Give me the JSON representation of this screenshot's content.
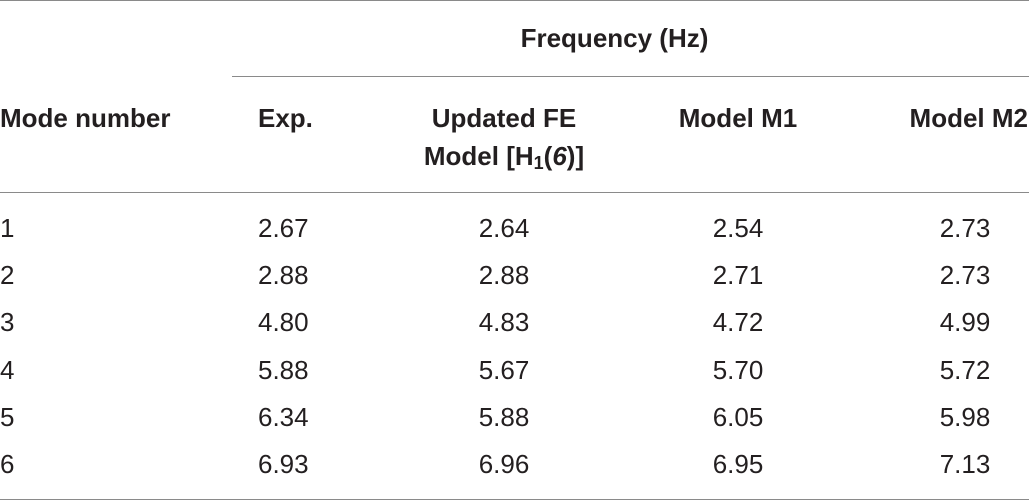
{
  "table": {
    "group_header": "Frequency (Hz)",
    "columns": {
      "mode": "Mode number",
      "exp": "Exp.",
      "fe_line1": "Updated FE",
      "fe_line2_prefix": "Model [H",
      "fe_line2_sub": "1",
      "fe_line2_open": "(",
      "fe_line2_ital": "6",
      "fe_line2_close": ")]",
      "m1": "Model M1",
      "m2": "Model M2"
    },
    "rows": [
      {
        "mode": "1",
        "exp": "2.67",
        "fe": "2.64",
        "m1": "2.54",
        "m2": "2.73"
      },
      {
        "mode": "2",
        "exp": "2.88",
        "fe": "2.88",
        "m1": "2.71",
        "m2": "2.73"
      },
      {
        "mode": "3",
        "exp": "4.80",
        "fe": "4.83",
        "m1": "4.72",
        "m2": "4.99"
      },
      {
        "mode": "4",
        "exp": "5.88",
        "fe": "5.67",
        "m1": "5.70",
        "m2": "5.72"
      },
      {
        "mode": "5",
        "exp": "6.34",
        "fe": "5.88",
        "m1": "6.05",
        "m2": "5.98"
      },
      {
        "mode": "6",
        "exp": "6.93",
        "fe": "6.96",
        "m1": "6.95",
        "m2": "7.13"
      }
    ]
  }
}
